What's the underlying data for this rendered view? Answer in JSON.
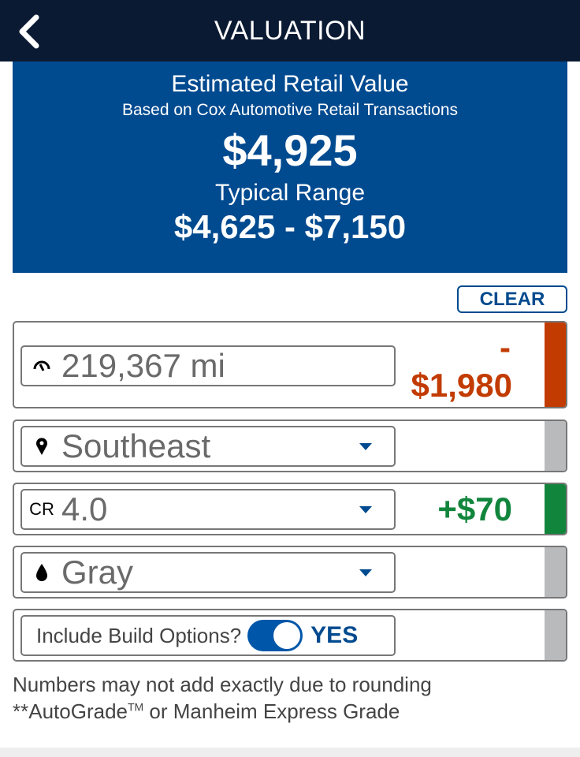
{
  "header": {
    "title": "VALUATION",
    "back_icon": "chevron-left-icon"
  },
  "valuation": {
    "label": "Estimated Retail Value",
    "source": "Based on Cox Automotive Retail Transactions",
    "value": "$4,925",
    "range_label": "Typical Range",
    "range": "$4,625 - $7,150"
  },
  "clear_label": "CLEAR",
  "rows": [
    {
      "icon": "odometer-icon",
      "value": "219,367 mi",
      "adjustment_sign": "-",
      "adjustment": "$1,980",
      "bar_color": "#c23b00"
    },
    {
      "icon": "location-pin-icon",
      "value": "Southeast",
      "bar_color": "#b8babb"
    },
    {
      "icon_text": "CR",
      "value": "4.0",
      "adjustment": "+$70",
      "bar_color": "#12853d"
    },
    {
      "icon": "paint-drop-icon",
      "value": "Gray",
      "bar_color": "#b8babb"
    },
    {
      "label": "Include Build Options?",
      "toggle_on": true,
      "toggle_label": "YES",
      "bar_color": "#b8babb"
    }
  ],
  "notes": {
    "line1": "Numbers may not add exactly due to rounding",
    "line2_a": "**AutoGrade",
    "line2_tm": "TM",
    "line2_b": " or Manheim Express Grade"
  },
  "colors": {
    "header": "#0b1a33",
    "brand_blue": "#004a8f",
    "negative": "#c23b00",
    "positive": "#12853d"
  }
}
